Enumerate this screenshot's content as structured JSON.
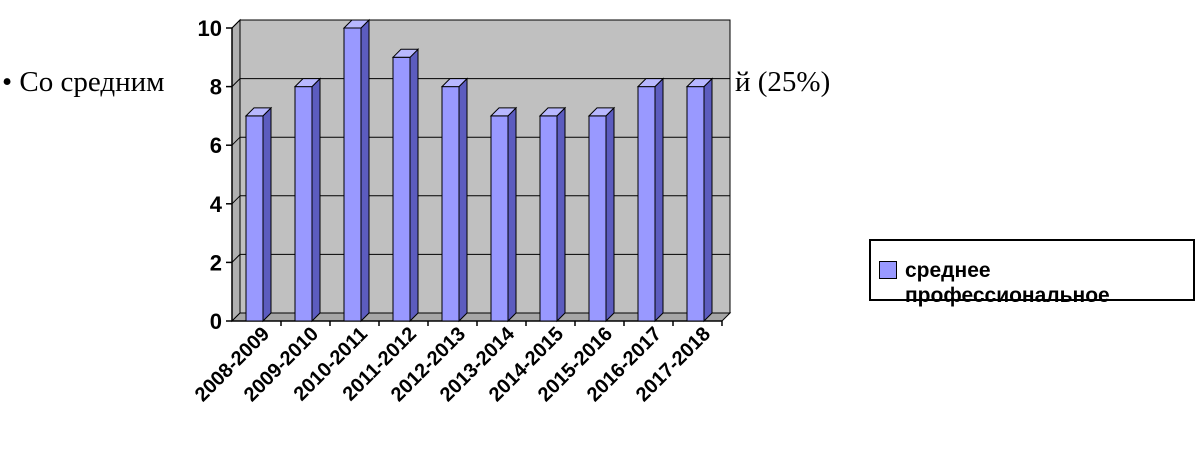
{
  "slide": {
    "bullet_text": "• Со средним",
    "bullet_tail": "й (25%)"
  },
  "chart_data": {
    "type": "bar",
    "title": "",
    "xlabel": "",
    "ylabel": "",
    "categories": [
      "2008-2009",
      "2009-2010",
      "2010-2011",
      "2011-2012",
      "2012-2013",
      "2013-2014",
      "2014-2015",
      "2015-2016",
      "2016-2017",
      "2017-2018"
    ],
    "series": [
      {
        "name": "среднее профессиональное",
        "values": [
          7,
          8,
          10,
          9,
          8,
          7,
          7,
          7,
          8,
          8
        ]
      }
    ],
    "ylim": [
      0,
      10
    ],
    "yticks": [
      0,
      2,
      4,
      6,
      8,
      10
    ],
    "grid": true,
    "style": "3d-clustered-column",
    "legend_position": "right",
    "colors": {
      "bar_face": "#9999ff",
      "bar_side": "#5c5cbf",
      "bar_top": "#b8b8ff",
      "plot_back": "#c0c0c0",
      "floor": "#a6a6a6"
    }
  }
}
